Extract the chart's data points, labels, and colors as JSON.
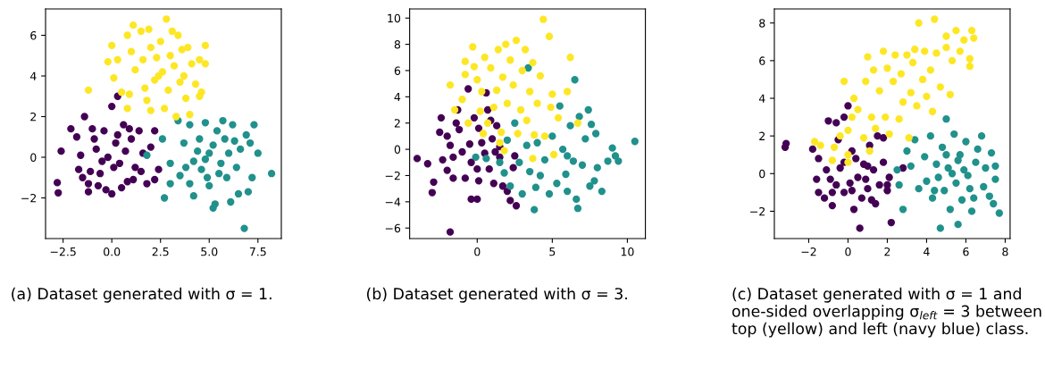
{
  "chart_data": [
    {
      "type": "scatter",
      "xlim": [
        -3.4,
        8.7
      ],
      "ylim": [
        -4.0,
        7.3
      ],
      "xticks": [
        {
          "value": -2.5,
          "label": "−2.5"
        },
        {
          "value": 0.0,
          "label": "0.0"
        },
        {
          "value": 2.5,
          "label": "2.5"
        },
        {
          "value": 5.0,
          "label": "5.0"
        },
        {
          "value": 7.5,
          "label": "7.5"
        }
      ],
      "yticks": [
        {
          "value": -2,
          "label": "−2"
        },
        0,
        2,
        4,
        6
      ],
      "annotations": [
        "(a) Dataset generated with σ = 1."
      ],
      "series": [
        {
          "color": "#440154",
          "x": [
            -2.8,
            -2.75,
            -2.6,
            -1.2,
            -1.2,
            -1.4,
            -1.7,
            -2.1,
            -1.8,
            -1.6,
            -1.0,
            -0.8,
            -0.6,
            -0.4,
            -0.3,
            0,
            0.3,
            0,
            0.2,
            0.4,
            0.6,
            0.8,
            1.0,
            1.2,
            1.4,
            1.6,
            1.8,
            2.0,
            2.4,
            2.2,
            2.2,
            -0.2,
            0.1,
            -0.5,
            0.7,
            -1.1,
            0.5,
            1.1,
            -0.9,
            0.3,
            1.5,
            -1.5,
            -0.7,
            0.9
          ],
          "values": [
            -1.25,
            -1.75,
            0.3,
            -1.3,
            -1.7,
            2.0,
            -0.6,
            1.4,
            1.0,
            0.1,
            1.4,
            0.4,
            -0.8,
            1.3,
            -1.6,
            2.5,
            3.0,
            -1.8,
            0.7,
            -0.3,
            1.6,
            -1.2,
            0.9,
            -0.5,
            1.3,
            0.2,
            -1.3,
            0.5,
            -0.6,
            -1.1,
            1.3,
            0.0,
            -0.5,
            -0.2,
            0.3,
            -0.7,
            -1.5,
            -1.1,
            0.9,
            1.1,
            -0.7,
            -1.0,
            -1.4,
            1.4
          ]
        },
        {
          "color": "#21918c",
          "x": [
            1.8,
            2.6,
            2.7,
            3.0,
            3.0,
            3.4,
            3.5,
            3.7,
            4.0,
            4.2,
            4.0,
            4.4,
            4.6,
            4.8,
            5.0,
            5.2,
            5.3,
            5.2,
            5.4,
            5.6,
            5.8,
            5.9,
            6.1,
            6.2,
            6.4,
            6.5,
            6.6,
            6.8,
            6.9,
            7.0,
            7.1,
            7.2,
            7.3,
            7.5,
            8.2,
            4.5,
            4.8,
            5.0,
            4.2,
            5.5,
            6.0,
            3.8,
            4.9,
            5.7,
            6.3
          ],
          "values": [
            0.1,
            0.9,
            -2.0,
            -0.3,
            -1.3,
            1.8,
            -0.9,
            0.7,
            1.6,
            -1.9,
            -1.3,
            0.3,
            -0.6,
            1.7,
            -1.4,
            -2.5,
            -2.3,
            0.6,
            1.3,
            -0.3,
            0.9,
            -1.0,
            -2.2,
            1.6,
            -0.5,
            -1.8,
            0.4,
            -3.5,
            1.1,
            -1.7,
            0.7,
            -1.0,
            1.6,
            0.2,
            -0.8,
            0.9,
            -0.1,
            0.2,
            -0.2,
            -0.8,
            0.2,
            -0.5,
            -1.0,
            1.8,
            0.8
          ]
        },
        {
          "color": "#fde725",
          "x": [
            -1.2,
            -0.2,
            0,
            0.1,
            0.3,
            0.5,
            0.8,
            0.8,
            0.9,
            1.0,
            1.1,
            1.2,
            1.5,
            1.6,
            1.7,
            1.8,
            1.9,
            2.0,
            2.0,
            2.2,
            2.3,
            2.5,
            2.6,
            2.7,
            2.8,
            2.9,
            3.0,
            3.1,
            3.2,
            3.3,
            3.4,
            3.5,
            3.6,
            3.7,
            3.8,
            3.9,
            4.0,
            4.1,
            4.3,
            4.5,
            4.6,
            4.8,
            4.8,
            4.5,
            2.4
          ],
          "values": [
            3.3,
            4.7,
            5.5,
            3.9,
            4.8,
            3.2,
            6.0,
            2.4,
            3.1,
            5.2,
            6.5,
            4.3,
            6.2,
            4.8,
            3.4,
            2.8,
            6.3,
            5.4,
            2.3,
            3.8,
            4.9,
            5.7,
            4.2,
            2.4,
            6.8,
            3.3,
            5.0,
            6.2,
            4.5,
            2.0,
            6.0,
            3.7,
            5.3,
            4.0,
            2.9,
            5.4,
            2.1,
            4.6,
            3.6,
            4.8,
            3.2,
            5.5,
            4.6,
            3.0,
            4.0
          ]
        }
      ]
    },
    {
      "type": "scatter",
      "xlim": [
        -4.5,
        11.2
      ],
      "ylim": [
        -6.8,
        10.7
      ],
      "xticks": [
        0,
        5,
        10
      ],
      "yticks": [
        {
          "value": -6,
          "label": "−6"
        },
        {
          "value": -4,
          "label": "−4"
        },
        {
          "value": -2,
          "label": "−2"
        },
        0,
        2,
        4,
        6,
        8,
        10
      ],
      "annotations": [
        "(b) Dataset generated with σ = 3."
      ],
      "series": [
        {
          "color": "#440154",
          "x": [
            -4.0,
            -3.3,
            -2.9,
            -3.0,
            -2.5,
            -2.4,
            -2.3,
            -2.0,
            -1.8,
            -1.8,
            -1.6,
            -1.4,
            -1.2,
            -1.3,
            -1.0,
            -0.8,
            -0.6,
            -0.5,
            -0.4,
            -0.2,
            0,
            0.1,
            -0.4,
            0,
            0.1,
            0.5,
            0.6,
            0.7,
            0.8,
            1.0,
            1.1,
            1.3,
            1.5,
            1.7,
            1.5,
            2.0,
            2.2,
            2.4,
            2.6,
            2.5,
            -1.6,
            0.3,
            1.2,
            -2.0,
            0.9
          ],
          "values": [
            -0.7,
            -1.1,
            -2.5,
            -3.3,
            1.3,
            2.4,
            -0.8,
            -1.6,
            0.3,
            -6.3,
            -2.2,
            2.0,
            1.5,
            3.0,
            -0.2,
            -2.2,
            4.6,
            0.4,
            -1.0,
            2.4,
            -1.5,
            -2.4,
            -3.8,
            -3.8,
            1.6,
            -0.3,
            4.3,
            3.0,
            -1.5,
            0.8,
            -2.6,
            1.8,
            -0.6,
            -2.8,
            0.2,
            -3.2,
            -3.9,
            -1.4,
            -4.3,
            -0.5,
            -0.6,
            0.5,
            -0.2,
            1.0,
            2.2
          ]
        },
        {
          "color": "#21918c",
          "x": [
            -0.1,
            0.6,
            1.5,
            1.8,
            2.2,
            2.0,
            2.5,
            2.8,
            3.0,
            3.3,
            3.5,
            3.8,
            3.9,
            3.4,
            4.2,
            4.5,
            4.8,
            5.0,
            5.3,
            5.5,
            5.7,
            5.9,
            6.0,
            6.2,
            6.4,
            6.5,
            6.6,
            6.7,
            6.8,
            7.0,
            7.2,
            7.4,
            7.5,
            7.6,
            7.8,
            7.9,
            8.0,
            8.3,
            8.7,
            9.0,
            9.2,
            9.4,
            10.5,
            4.0,
            6.0
          ],
          "values": [
            -0.6,
            -0.7,
            -1.0,
            -1.8,
            -2.8,
            0.7,
            2.0,
            -1.0,
            -3.4,
            0.3,
            -1.7,
            -4.6,
            -2.9,
            6.2,
            -2.0,
            -0.8,
            -3.4,
            1.0,
            -2.6,
            3.3,
            0.0,
            -1.9,
            -3.2,
            1.8,
            -0.9,
            5.3,
            -3.8,
            -4.5,
            2.5,
            -1.2,
            0.8,
            3.0,
            -2.8,
            1.9,
            -2.4,
            1.2,
            -1.4,
            -3.2,
            -0.9,
            0.1,
            -0.5,
            -0.9,
            0.6,
            0.5,
            -0.5
          ]
        },
        {
          "color": "#fde725",
          "x": [
            -1.8,
            -1.5,
            -1.0,
            -0.8,
            -0.8,
            -0.6,
            -0.3,
            -0.2,
            0,
            0.2,
            0.3,
            0.4,
            0.5,
            0.7,
            0.9,
            1.1,
            1.3,
            1.4,
            1.5,
            1.6,
            1.7,
            1.8,
            1.9,
            2.0,
            2.2,
            2.4,
            2.6,
            2.7,
            2.9,
            3.0,
            3.2,
            3.3,
            3.5,
            3.7,
            3.7,
            3.8,
            4.0,
            4.2,
            4.4,
            4.5,
            4.8,
            4.9,
            5.0,
            5.1,
            5.4,
            6.0,
            6.2,
            6.7
          ],
          "values": [
            4.9,
            3.0,
            3.8,
            5.7,
            6.7,
            2.0,
            7.8,
            6.3,
            5.3,
            2.9,
            4.4,
            1.2,
            7.0,
            2.0,
            6.2,
            3.2,
            4.5,
            7.6,
            0.5,
            1.3,
            5.5,
            -0.1,
            8.0,
            3.5,
            6.8,
            4.9,
            8.3,
            1.2,
            3.0,
            6.0,
            7.6,
            2.2,
            4.4,
            -0.7,
            6.6,
            1.1,
            3.5,
            5.6,
            9.9,
            1.0,
            8.6,
            3.2,
            4.2,
            -0.4,
            2.4,
            4.4,
            7.0,
            2.0
          ]
        }
      ]
    },
    {
      "type": "scatter",
      "xlim": [
        -3.75,
        8.25
      ],
      "ylim": [
        -3.45,
        8.75
      ],
      "xticks": [
        {
          "value": -2,
          "label": "−2"
        },
        0,
        2,
        4,
        6,
        8
      ],
      "yticks": [
        {
          "value": -2,
          "label": "−2"
        },
        0,
        2,
        4,
        6,
        8
      ],
      "annotations": [
        "(c) Dataset generated with σ = 1 and one-sided overlapping σ$_{left}$ = 3 between top (yellow) and left (navy blue) class."
      ],
      "series": [
        {
          "color": "#440154",
          "x": [
            -3.2,
            -3.15,
            -1.8,
            -1.6,
            -1.5,
            -1.5,
            -1.2,
            -1.0,
            -0.9,
            -0.8,
            -0.6,
            -0.5,
            -0.4,
            -0.2,
            -0.2,
            0,
            0.1,
            0.2,
            0.3,
            0.4,
            0.5,
            0.6,
            0.7,
            0.8,
            1.0,
            1.1,
            1.2,
            1.3,
            1.4,
            1.5,
            1.6,
            1.8,
            1.8,
            2.0,
            2.0,
            2.2,
            2.1,
            2.8,
            -0.6,
            0.9,
            -0.2,
            0.2,
            1.0,
            -1.1,
            -0.8
          ],
          "values": [
            1.4,
            1.6,
            1.3,
            -0.3,
            0.8,
            -1.0,
            -1.3,
            2.8,
            -0.3,
            -1.7,
            2.7,
            1.8,
            0.3,
            3.0,
            -1.0,
            3.6,
            -0.5,
            1.2,
            -1.9,
            0.8,
            -0.2,
            -2.9,
            -1.3,
            0.5,
            -0.8,
            1.5,
            -1.4,
            0.2,
            -1.6,
            2.0,
            -0.6,
            1.9,
            0.6,
            -0.9,
            -0.6,
            -2.6,
            -0.2,
            0.3,
            -0.6,
            -0.3,
            0.6,
            -0.9,
            0.4,
            0.2,
            -1.0
          ]
        },
        {
          "color": "#21918c",
          "x": [
            2.5,
            2.6,
            2.8,
            3.0,
            3.2,
            3.4,
            3.6,
            3.9,
            4.0,
            4.2,
            4.3,
            4.5,
            4.7,
            4.8,
            4.9,
            5.0,
            5.1,
            5.2,
            5.4,
            5.5,
            5.6,
            5.7,
            5.8,
            5.9,
            6.0,
            6.2,
            6.3,
            6.5,
            6.6,
            6.8,
            6.9,
            7.0,
            7.2,
            7.3,
            7.4,
            7.5,
            7.5,
            7.7,
            4.6,
            5.3,
            6.1,
            5.6,
            4.4,
            5.0,
            6.4
          ],
          "values": [
            0.2,
            -0.6,
            -1.9,
            1.2,
            0.4,
            1.8,
            -0.8,
            0.9,
            -0.4,
            2.0,
            -1.3,
            0.5,
            -2.9,
            1.4,
            -0.9,
            2.9,
            0.3,
            -1.9,
            2.1,
            -0.5,
            -2.7,
            1.0,
            -1.4,
            0.2,
            1.7,
            -0.8,
            -2.0,
            0.6,
            1.3,
            2.0,
            -0.7,
            0.3,
            -1.2,
            1.1,
            -1.6,
            0.4,
            -0.3,
            -2.1,
            -0.2,
            0.0,
            -0.1,
            0.7,
            -0.9,
            1.0,
            -1.3
          ]
        },
        {
          "color": "#fde725",
          "x": [
            -1.7,
            -1.4,
            -0.7,
            -0.8,
            -0.4,
            -0.2,
            0,
            0,
            0.0,
            0.2,
            0.3,
            0.5,
            0.8,
            0.9,
            1.0,
            1.1,
            1.2,
            1.3,
            1.4,
            1.6,
            1.8,
            1.9,
            2.0,
            2.1,
            2.3,
            2.4,
            2.6,
            2.7,
            2.8,
            3.0,
            3.1,
            3.2,
            3.3,
            3.4,
            3.5,
            3.6,
            3.8,
            3.9,
            4.0,
            4.2,
            4.3,
            4.4,
            4.5,
            4.7,
            5.0,
            5.0,
            5.3,
            5.5,
            5.7,
            5.2,
            5.9,
            6.2,
            6.3,
            6.4,
            6.2
          ],
          "values": [
            1.7,
            1.5,
            1.4,
            0.7,
            2.0,
            4.9,
            1.0,
            0.6,
            2.3,
            3.0,
            4.0,
            3.4,
            1.9,
            4.9,
            6.2,
            1.2,
            3.0,
            5.5,
            2.4,
            4.4,
            6.5,
            3.0,
            5.6,
            2.1,
            4.9,
            6.3,
            2.9,
            5.3,
            3.8,
            6.3,
            1.9,
            4.3,
            5.9,
            6.6,
            3.6,
            8.0,
            5.0,
            6.5,
            4.1,
            5.5,
            3.3,
            8.2,
            6.4,
            4.6,
            7.3,
            6.7,
            6.0,
            7.6,
            6.5,
            4.2,
            7.1,
            5.7,
            7.6,
            7.2,
            6.1
          ]
        }
      ]
    }
  ]
}
